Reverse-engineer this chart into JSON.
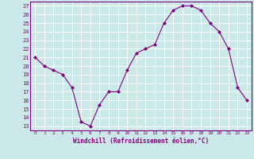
{
  "x": [
    0,
    1,
    2,
    3,
    4,
    5,
    6,
    7,
    8,
    9,
    10,
    11,
    12,
    13,
    14,
    15,
    16,
    17,
    18,
    19,
    20,
    21,
    22,
    23
  ],
  "y": [
    21,
    20,
    19.5,
    19,
    17.5,
    13.5,
    13,
    15.5,
    17,
    17,
    19.5,
    21.5,
    22,
    22.5,
    25,
    26.5,
    27,
    27,
    26.5,
    25,
    24,
    22,
    17.5,
    16
  ],
  "line_color": "#800080",
  "marker": "D",
  "marker_size": 2,
  "bg_color": "#cce9e9",
  "grid_color": "#ffffff",
  "xlabel": "Windchill (Refroidissement éolien,°C)",
  "ylabel_ticks": [
    13,
    14,
    15,
    16,
    17,
    18,
    19,
    20,
    21,
    22,
    23,
    24,
    25,
    26,
    27
  ],
  "ylim": [
    12.5,
    27.5
  ],
  "xlim": [
    -0.5,
    23.5
  ],
  "tick_color": "#800080",
  "spine_color": "#800080",
  "xlabel_fontsize": 5.5,
  "ytick_fontsize": 5,
  "xtick_fontsize": 4.5
}
